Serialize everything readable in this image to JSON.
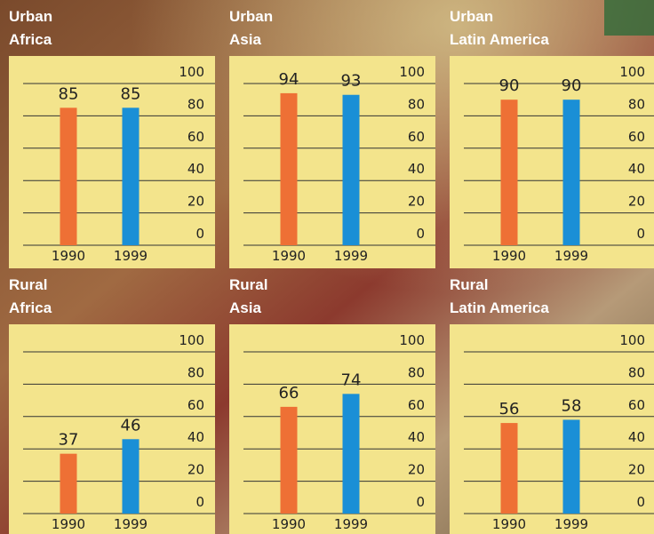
{
  "chart_data": [
    {
      "type": "bar",
      "title": "Urban",
      "subtitle": "Africa",
      "categories": [
        "1990",
        "1999"
      ],
      "values": [
        85,
        85
      ],
      "colors": [
        "#ee7035",
        "#1a8fd6"
      ],
      "ylim": [
        0,
        100
      ],
      "yticks": [
        0,
        20,
        40,
        60,
        80,
        100
      ],
      "grid": true
    },
    {
      "type": "bar",
      "title": "Urban",
      "subtitle": "Asia",
      "categories": [
        "1990",
        "1999"
      ],
      "values": [
        94,
        93
      ],
      "colors": [
        "#ee7035",
        "#1a8fd6"
      ],
      "ylim": [
        0,
        100
      ],
      "yticks": [
        0,
        20,
        40,
        60,
        80,
        100
      ],
      "grid": true
    },
    {
      "type": "bar",
      "title": "Urban",
      "subtitle": "Latin America",
      "categories": [
        "1990",
        "1999"
      ],
      "values": [
        90,
        90
      ],
      "colors": [
        "#ee7035",
        "#1a8fd6"
      ],
      "ylim": [
        0,
        100
      ],
      "yticks": [
        0,
        20,
        40,
        60,
        80,
        100
      ],
      "grid": true
    },
    {
      "type": "bar",
      "title": "Rural",
      "subtitle": "Africa",
      "categories": [
        "1990",
        "1999"
      ],
      "values": [
        37,
        46
      ],
      "colors": [
        "#ee7035",
        "#1a8fd6"
      ],
      "ylim": [
        0,
        100
      ],
      "yticks": [
        0,
        20,
        40,
        60,
        80,
        100
      ],
      "grid": true
    },
    {
      "type": "bar",
      "title": "Rural",
      "subtitle": "Asia",
      "categories": [
        "1990",
        "1999"
      ],
      "values": [
        66,
        74
      ],
      "colors": [
        "#ee7035",
        "#1a8fd6"
      ],
      "ylim": [
        0,
        100
      ],
      "yticks": [
        0,
        20,
        40,
        60,
        80,
        100
      ],
      "grid": true
    },
    {
      "type": "bar",
      "title": "Rural",
      "subtitle": "Latin America",
      "categories": [
        "1990",
        "1999"
      ],
      "values": [
        56,
        58
      ],
      "colors": [
        "#ee7035",
        "#1a8fd6"
      ],
      "ylim": [
        0,
        100
      ],
      "yticks": [
        0,
        20,
        40,
        60,
        80,
        100
      ],
      "grid": true
    }
  ]
}
